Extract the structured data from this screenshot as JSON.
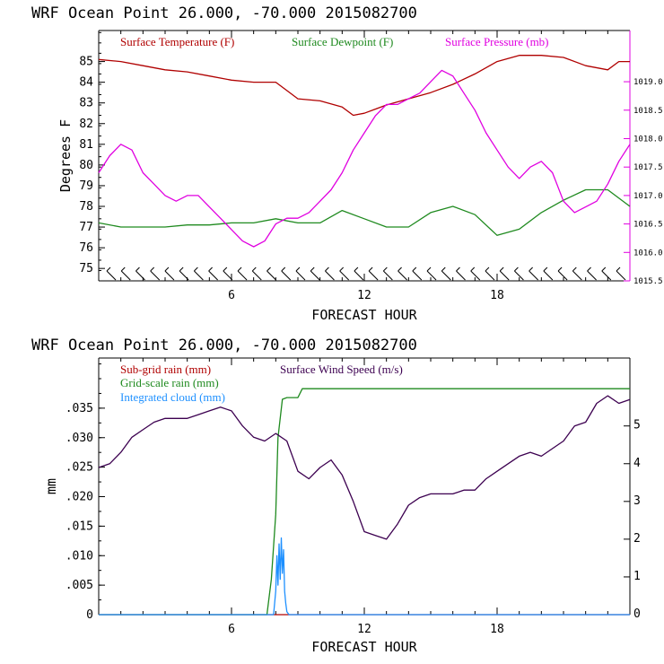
{
  "chart_data": [
    {
      "type": "line",
      "title": "WRF   Ocean Point   26.000, -70.000  2015082700",
      "xlabel": "FORECAST HOUR",
      "ylabel": "Degrees F",
      "xlim": [
        0,
        24
      ],
      "ylim": [
        74.4,
        86.5
      ],
      "xticks": [
        "6",
        "12",
        "18"
      ],
      "yticks": [
        "75",
        "76",
        "77",
        "78",
        "79",
        "80",
        "81",
        "82",
        "83",
        "84",
        "85"
      ],
      "y2lim": [
        1015.5,
        1019.9
      ],
      "y2ticks": [
        "1015.5",
        "1016.0",
        "1016.5",
        "1017.0",
        "1017.5",
        "1018.0",
        "1018.5",
        "1019.0"
      ],
      "colors": {
        "temp": "#b00000",
        "dew": "#1f8a1f",
        "pres": "#e000e0",
        "axis_right": "#e000e0"
      },
      "series": [
        {
          "name": "Surface Temperature (F)",
          "axis": "left",
          "x": [
            0,
            1,
            2,
            3,
            4,
            5,
            6,
            7,
            8,
            8.5,
            9,
            10,
            11,
            11.5,
            12,
            12.5,
            13,
            14,
            15,
            16,
            17,
            18,
            19,
            20,
            21,
            22,
            23,
            23.5,
            24
          ],
          "values": [
            85.1,
            85.0,
            84.8,
            84.6,
            84.5,
            84.3,
            84.1,
            84.0,
            84.0,
            83.6,
            83.2,
            83.1,
            82.8,
            82.4,
            82.5,
            82.7,
            82.9,
            83.2,
            83.5,
            83.9,
            84.4,
            85.0,
            85.3,
            85.3,
            85.2,
            84.8,
            84.6,
            85.0,
            85.0
          ]
        },
        {
          "name": "Surface Dewpoint (F)",
          "axis": "left",
          "x": [
            0,
            1,
            2,
            3,
            4,
            5,
            6,
            7,
            8,
            9,
            10,
            11,
            12,
            13,
            14,
            15,
            16,
            17,
            18,
            19,
            20,
            21,
            22,
            23,
            24
          ],
          "values": [
            77.2,
            77.0,
            77.0,
            77.0,
            77.1,
            77.1,
            77.2,
            77.2,
            77.4,
            77.2,
            77.2,
            77.8,
            77.4,
            77.0,
            77.0,
            77.7,
            78.0,
            77.6,
            76.6,
            76.9,
            77.7,
            78.3,
            78.8,
            78.8,
            78.0
          ]
        },
        {
          "name": "Surface Pressure (mb)",
          "axis": "right",
          "x": [
            0,
            0.5,
            1,
            1.5,
            2,
            2.5,
            3,
            3.5,
            4,
            4.5,
            5,
            5.5,
            6,
            6.5,
            7,
            7.5,
            8,
            8.5,
            9,
            9.5,
            10,
            10.5,
            11,
            11.5,
            12,
            12.5,
            13,
            13.5,
            14,
            14.5,
            15,
            15.5,
            16,
            16.5,
            17,
            17.5,
            18,
            18.5,
            19,
            19.5,
            20,
            20.5,
            21,
            21.5,
            22,
            22.5,
            23,
            23.5,
            24
          ],
          "values": [
            1017.4,
            1017.7,
            1017.9,
            1017.8,
            1017.4,
            1017.2,
            1017.0,
            1016.9,
            1017.0,
            1017.0,
            1016.8,
            1016.6,
            1016.4,
            1016.2,
            1016.1,
            1016.2,
            1016.5,
            1016.6,
            1016.6,
            1016.7,
            1016.9,
            1017.1,
            1017.4,
            1017.8,
            1018.1,
            1018.4,
            1018.6,
            1018.6,
            1018.7,
            1018.8,
            1019.0,
            1019.2,
            1019.1,
            1018.8,
            1018.5,
            1018.1,
            1017.8,
            1017.5,
            1017.3,
            1017.5,
            1017.6,
            1017.4,
            1016.9,
            1016.7,
            1016.8,
            1016.9,
            1017.2,
            1017.6,
            1017.9
          ]
        }
      ],
      "wind_barbs": 36
    },
    {
      "type": "line",
      "title": "WRF   Ocean Point   26.000, -70.000  2015082700",
      "xlabel": "FORECAST HOUR",
      "ylabel": "mm",
      "xlim": [
        0,
        24
      ],
      "ylim": [
        0,
        0.0435
      ],
      "xticks": [
        "6",
        "12",
        "18"
      ],
      "yticks": [
        "0",
        ".005",
        ".010",
        ".015",
        ".020",
        ".025",
        ".030",
        ".035"
      ],
      "y2lim": [
        0,
        6.8
      ],
      "y2ticks": [
        "0",
        "1",
        "2",
        "3",
        "4",
        "5"
      ],
      "colors": {
        "subgrid": "#b00000",
        "gridscale": "#1f8a1f",
        "cloud": "#1e90ff",
        "wind": "#3c0050"
      },
      "series": [
        {
          "name": "Sub-grid rain (mm)",
          "axis": "left",
          "x": [
            0,
            24
          ],
          "values": [
            0,
            0
          ]
        },
        {
          "name": "Grid-scale rain (mm)",
          "axis": "left",
          "x": [
            0,
            7.6,
            7.8,
            8.0,
            8.1,
            8.3,
            8.5,
            9.0,
            9.2,
            24
          ],
          "values": [
            0,
            0,
            0.006,
            0.017,
            0.03,
            0.0365,
            0.0368,
            0.0368,
            0.0383,
            0.0383
          ]
        },
        {
          "name": "Integrated cloud (mm)",
          "axis": "left",
          "x": [
            0,
            7.9,
            8.0,
            8.05,
            8.1,
            8.15,
            8.2,
            8.25,
            8.3,
            8.35,
            8.4,
            8.45,
            8.5,
            8.6,
            9.0,
            24
          ],
          "values": [
            0,
            0,
            0.004,
            0.01,
            0.005,
            0.012,
            0.006,
            0.013,
            0.007,
            0.011,
            0.004,
            0.002,
            0.0005,
            0,
            0,
            0
          ]
        },
        {
          "name": "Surface Wind Speed (m/s)",
          "axis": "right",
          "x": [
            0,
            0.5,
            1,
            1.5,
            2,
            2.5,
            3,
            3.5,
            4,
            4.5,
            5,
            5.5,
            6,
            6.5,
            7,
            7.5,
            8,
            8.5,
            9,
            9.5,
            10,
            10.5,
            11,
            11.5,
            12,
            12.5,
            13,
            13.5,
            14,
            14.5,
            15,
            15.5,
            16,
            16.5,
            17,
            17.5,
            18,
            18.5,
            19,
            19.5,
            20,
            20.5,
            21,
            21.5,
            22,
            22.5,
            23,
            23.5,
            24
          ],
          "values": [
            3.9,
            4.0,
            4.3,
            4.7,
            4.9,
            5.1,
            5.2,
            5.2,
            5.2,
            5.3,
            5.4,
            5.5,
            5.4,
            5.0,
            4.7,
            4.6,
            4.8,
            4.6,
            3.8,
            3.6,
            3.9,
            4.1,
            3.7,
            3.0,
            2.2,
            2.1,
            2.0,
            2.4,
            2.9,
            3.1,
            3.2,
            3.2,
            3.2,
            3.3,
            3.3,
            3.6,
            3.8,
            4.0,
            4.2,
            4.3,
            4.2,
            4.4,
            4.6,
            5.0,
            5.1,
            5.6,
            5.8,
            5.6,
            5.7
          ]
        }
      ]
    }
  ]
}
